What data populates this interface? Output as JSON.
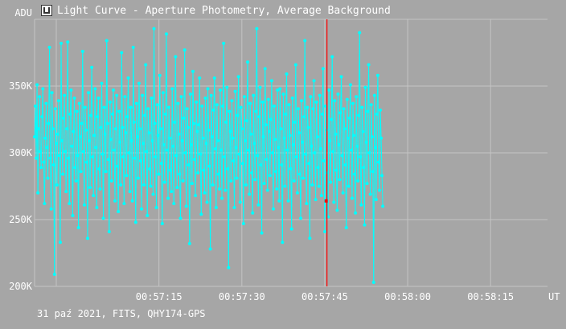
{
  "window": {
    "title": "Light Curve - Aperture Photometry, Average Background",
    "icon": "chart-app-icon"
  },
  "footer": {
    "text": "31 paź 2021, FITS, QHY174-GPS"
  },
  "colors": {
    "background": "#a6a6a6",
    "series": "#00ffff",
    "grid": "#c4c4c4",
    "cursor": "#ff0000"
  },
  "chart_data": {
    "type": "line",
    "title": "Light Curve - Aperture Photometry, Average Background",
    "xlabel": "UT",
    "ylabel": "ADU",
    "y_ticks": [
      "200K",
      "250K",
      "300K",
      "350K"
    ],
    "x_ticks": [
      "00:57:15",
      "00:57:30",
      "00:57:45",
      "00:58:00",
      "00:58:15"
    ],
    "x_tick_seconds": [
      75,
      90,
      105,
      120,
      135
    ],
    "ylim": [
      200000,
      400000
    ],
    "xlim_seconds": [
      52.5,
      145.3
    ],
    "x_unit": "seconds after 00:56:00 UT",
    "cursor_x_seconds": 105.4,
    "grid": true,
    "series": [
      {
        "name": "Average Background",
        "x_start_seconds": 52.5,
        "x_step_seconds": 0.15,
        "values": [
          312000,
          335000,
          296000,
          351000,
          270000,
          318000,
          342000,
          301000,
          289000,
          327000,
          348000,
          293000,
          262000,
          311000,
          337000,
          304000,
          281000,
          322000,
          379000,
          296000,
          258000,
          345000,
          318000,
          291000,
          209000,
          333000,
          307000,
          276000,
          314000,
          339000,
          298000,
          233000,
          382000,
          309000,
          284000,
          326000,
          343000,
          301000,
          271000,
          318000,
          383000,
          296000,
          262000,
          329000,
          347000,
          305000,
          253000,
          316000,
          341000,
          289000,
          279000,
          331000,
          298000,
          244000,
          337000,
          312000,
          286000,
          322000,
          376000,
          301000,
          261000,
          334000,
          317000,
          293000,
          236000,
          345000,
          309000,
          274000,
          328000,
          364000,
          297000,
          268000,
          313000,
          348000,
          304000,
          259000,
          327000,
          341000,
          288000,
          273000,
          319000,
          352000,
          299000,
          251000,
          334000,
          314000,
          286000,
          384000,
          322000,
          295000,
          241000,
          338000,
          310000,
          279000,
          329000,
          347000,
          302000,
          264000,
          318000,
          343000,
          290000,
          256000,
          331000,
          308000,
          276000,
          375000,
          319000,
          297000,
          262000,
          342000,
          315000,
          283000,
          327000,
          356000,
          300000,
          271000,
          334000,
          309000,
          264000,
          379000,
          323000,
          296000,
          248000,
          337000,
          312000,
          281000,
          352000,
          318000,
          294000,
          258000,
          343000,
          307000,
          276000,
          328000,
          366000,
          301000,
          253000,
          333000,
          315000,
          288000,
          275000,
          341000,
          309000,
          269000,
          393000,
          322000,
          297000,
          259000,
          336000,
          313000,
          284000,
          358000,
          318000,
          292000,
          247000,
          345000,
          306000,
          278000,
          329000,
          389000,
          302000,
          266000,
          334000,
          311000,
          287000,
          271000,
          348000,
          305000,
          262000,
          323000,
          372000,
          298000,
          274000,
          337000,
          314000,
          284000,
          251000,
          342000,
          309000,
          279000,
          326000,
          377000,
          300000,
          260000,
          333000,
          319000,
          291000,
          232000,
          344000,
          306000,
          277000,
          361000,
          322000,
          295000,
          268000,
          338000,
          316000,
          285000,
          321000,
          356000,
          299000,
          254000,
          335000,
          311000,
          287000,
          270000,
          341000,
          307000,
          263000,
          348000,
          317000,
          290000,
          228000,
          343000,
          312000,
          276000,
          332000,
          356000,
          303000,
          259000,
          336000,
          309000,
          284000,
          273000,
          347000,
          302000,
          266000,
          335000,
          382000,
          297000,
          272000,
          323000,
          349000,
          288000,
          214000,
          331000,
          316000,
          279000,
          339000,
          311000,
          294000,
          259000,
          346000,
          304000,
          281000,
          328000,
          357000,
          299000,
          263000,
          334000,
          318000,
          292000,
          247000,
          342000,
          309000,
          276000,
          324000,
          368000,
          302000,
          269000,
          337000,
          314000,
          285000,
          255000,
          343000,
          307000,
          280000,
          331000,
          393000,
          298000,
          261000,
          327000,
          349000,
          291000,
          240000,
          338000,
          312000,
          277000,
          363000,
          321000,
          295000,
          272000,
          340000,
          316000,
          283000,
          325000,
          354000,
          300000,
          258000,
          335000,
          310000,
          286000,
          273000,
          347000,
          304000,
          264000,
          348000,
          318000,
          291000,
          233000,
          344000,
          311000,
          275000,
          329000,
          359000,
          302000,
          264000,
          336000,
          313000,
          288000,
          243000,
          341000,
          306000,
          279000,
          323000,
          366000,
          297000,
          270000,
          333000,
          315000,
          284000,
          251000,
          339000,
          308000,
          281000,
          327000,
          384000,
          299000,
          262000,
          334000,
          319000,
          292000,
          236000,
          342000,
          305000,
          276000,
          333000,
          354000,
          300000,
          265000,
          338000,
          312000,
          289000,
          275000,
          343000,
          303000,
          268000,
          329000,
          363000,
          294000,
          241000,
          335000,
          317000,
          285000,
          252000,
          347000,
          309000,
          278000,
          325000,
          372000,
          301000,
          263000,
          339000,
          314000,
          287000,
          257000,
          344000,
          306000,
          280000,
          330000,
          357000,
          298000,
          270000,
          333000,
          318000,
          291000,
          244000,
          340000,
          311000,
          275000,
          326000,
          351000,
          302000,
          266000,
          337000,
          313000,
          284000,
          255000,
          342000,
          305000,
          279000,
          328000,
          390000,
          297000,
          261000,
          334000,
          316000,
          289000,
          246000,
          349000,
          308000,
          277000,
          331000,
          366000,
          300000,
          269000,
          336000,
          312000,
          286000,
          203000,
          343000,
          304000,
          265000,
          329000,
          358000,
          293000,
          272000,
          332000,
          311000,
          283000,
          260000
        ]
      }
    ]
  }
}
